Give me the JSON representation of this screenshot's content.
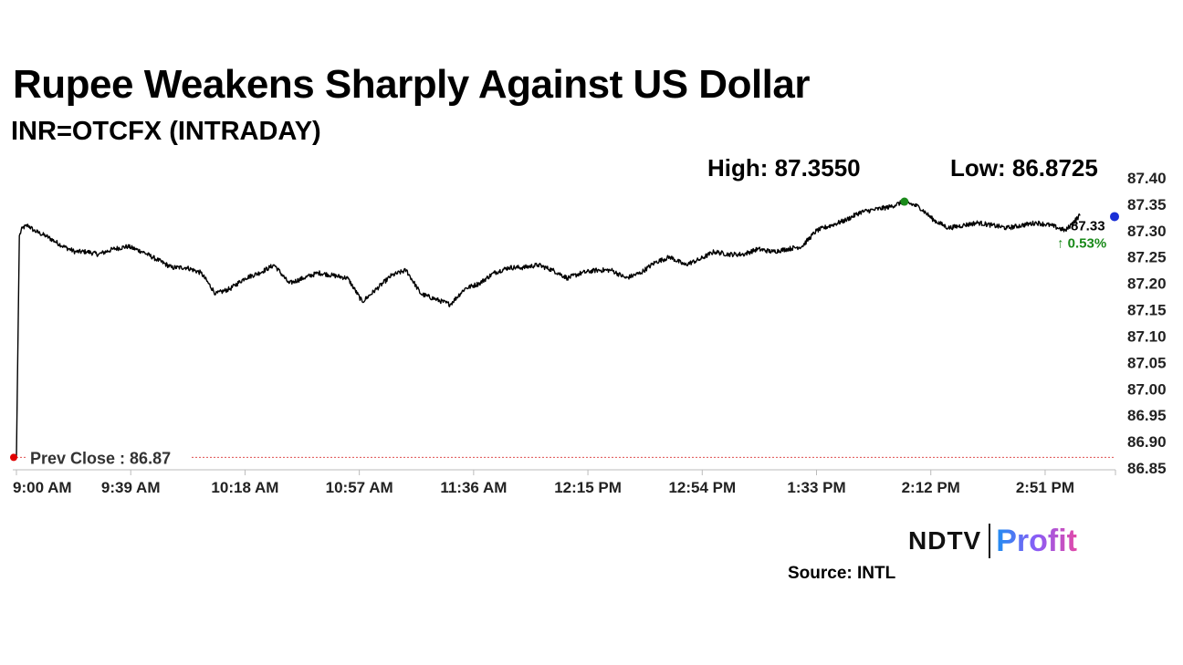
{
  "header": {
    "title": "Rupee Weakens Sharply Against US Dollar",
    "subtitle": "INR=OTCFX (INTRADAY)",
    "high_label": "High: 87.3550",
    "low_label": "Low: 86.8725"
  },
  "footer": {
    "logo_left": "NDTV",
    "logo_right": "Profit",
    "source": "Source: INTL"
  },
  "chart_data": {
    "type": "line",
    "y_ticks": [
      "87.40",
      "87.35",
      "87.30",
      "87.25",
      "87.20",
      "87.15",
      "87.10",
      "87.05",
      "87.00",
      "86.95",
      "86.90",
      "86.85"
    ],
    "ylim": [
      86.85,
      87.4
    ],
    "x_ticks": [
      "9:00 AM",
      "9:39 AM",
      "10:18 AM",
      "10:57 AM",
      "11:36 AM",
      "12:15 PM",
      "12:54 PM",
      "1:33 PM",
      "2:12 PM",
      "2:51 PM"
    ],
    "xlim": [
      0,
      375
    ],
    "prev_close": 86.87,
    "prev_close_label": "Prev Close : 86.87",
    "last_value_label": "87.33",
    "change_label": "↑ 0.53%",
    "grid": false,
    "colors": {
      "line": "#000000",
      "prev_close_marker": "#e00000",
      "prev_close_line": "#e05050",
      "high_marker": "#1a8a1a",
      "last_marker": "#1a2fd6",
      "change_text": "#1a8a1a",
      "axis": "#bbbbbb"
    },
    "x": [
      0,
      1,
      2,
      4,
      6,
      8,
      10,
      13,
      16,
      20,
      24,
      28,
      33,
      38,
      43,
      48,
      53,
      58,
      63,
      68,
      73,
      78,
      83,
      88,
      93,
      98,
      103,
      108,
      113,
      118,
      123,
      128,
      133,
      138,
      143,
      148,
      153,
      158,
      163,
      168,
      173,
      178,
      183,
      188,
      193,
      198,
      203,
      208,
      213,
      218,
      223,
      228,
      233,
      238,
      243,
      248,
      253,
      258,
      263,
      268,
      273,
      278,
      283,
      288,
      293,
      298,
      303,
      308,
      313,
      318,
      323,
      328,
      333,
      338,
      343,
      348,
      353,
      358,
      363
    ],
    "values": [
      86.87,
      87.29,
      87.305,
      87.31,
      87.3,
      87.295,
      87.29,
      87.28,
      87.27,
      87.26,
      87.26,
      87.255,
      87.265,
      87.27,
      87.26,
      87.245,
      87.23,
      87.23,
      87.22,
      87.18,
      87.19,
      87.21,
      87.22,
      87.235,
      87.2,
      87.21,
      87.22,
      87.215,
      87.21,
      87.165,
      87.19,
      87.215,
      87.225,
      87.18,
      87.17,
      87.16,
      87.19,
      87.2,
      87.22,
      87.23,
      87.23,
      87.235,
      87.225,
      87.21,
      87.22,
      87.225,
      87.225,
      87.21,
      87.22,
      87.24,
      87.25,
      87.235,
      87.245,
      87.26,
      87.255,
      87.255,
      87.265,
      87.26,
      87.265,
      87.27,
      87.3,
      87.31,
      87.32,
      87.335,
      87.34,
      87.345,
      87.355,
      87.345,
      87.32,
      87.305,
      87.31,
      87.315,
      87.31,
      87.305,
      87.31,
      87.315,
      87.31,
      87.3,
      87.33
    ]
  }
}
